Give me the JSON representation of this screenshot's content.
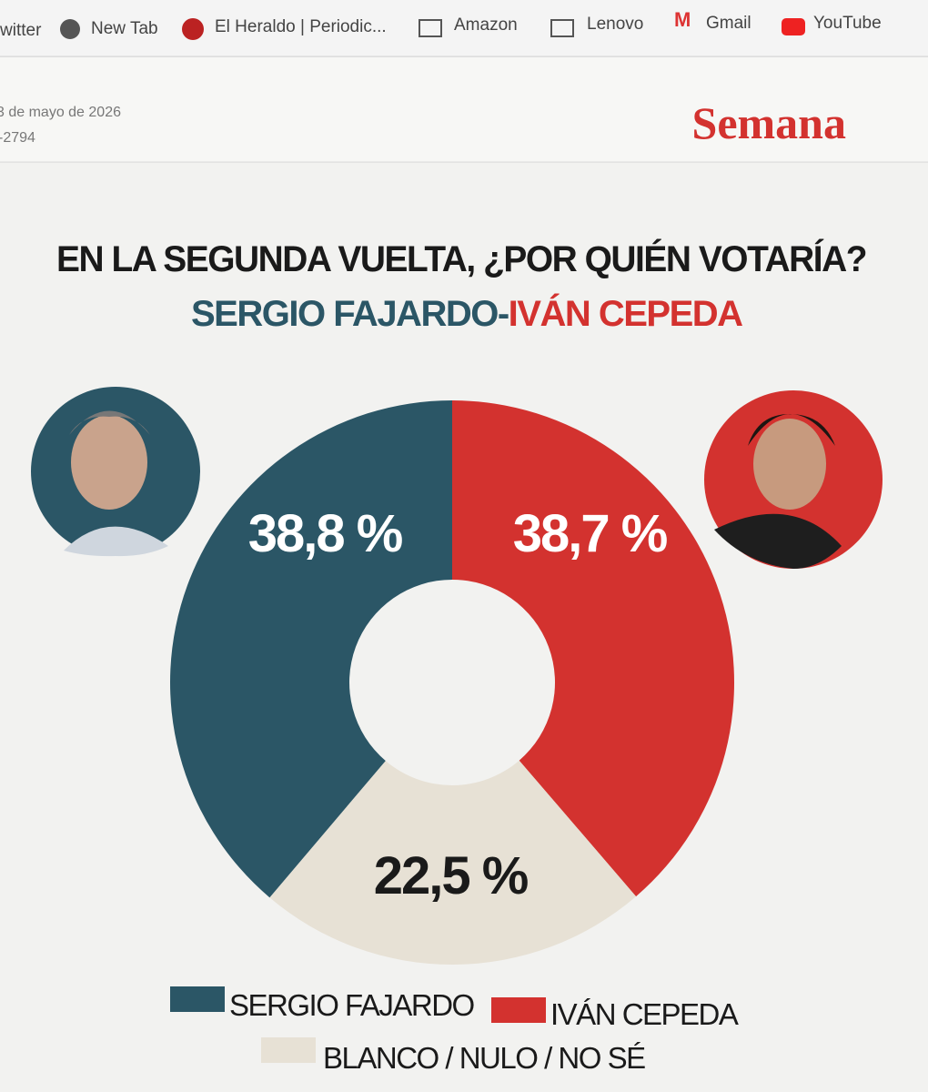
{
  "browser": {
    "bookmarks": [
      "witter",
      "New Tab",
      "El Heraldo | Periodic...",
      "Amazon",
      "Lenovo",
      "Gmail",
      "YouTube"
    ]
  },
  "header": {
    "date": "3 de mayo de 2026",
    "code": "-2794",
    "brand": "Semana"
  },
  "chart_data": {
    "type": "donut",
    "title": "EN LA SEGUNDA VUELTA, ¿POR QUIÉN VOTARÍA?",
    "subtitle_parts": [
      "SERGIO FAJARDO-",
      "IVÁN CEPEDA"
    ],
    "categories": [
      "SERGIO FAJARDO",
      "IVÁN CEPEDA",
      "BLANCO / NULO / NO SÉ"
    ],
    "values": [
      38.8,
      38.7,
      22.5
    ],
    "value_labels": [
      "38,8 %",
      "38,7 %",
      "22,5 %"
    ],
    "colors": [
      "#2b5666",
      "#d3322f",
      "#e7e1d5"
    ]
  }
}
